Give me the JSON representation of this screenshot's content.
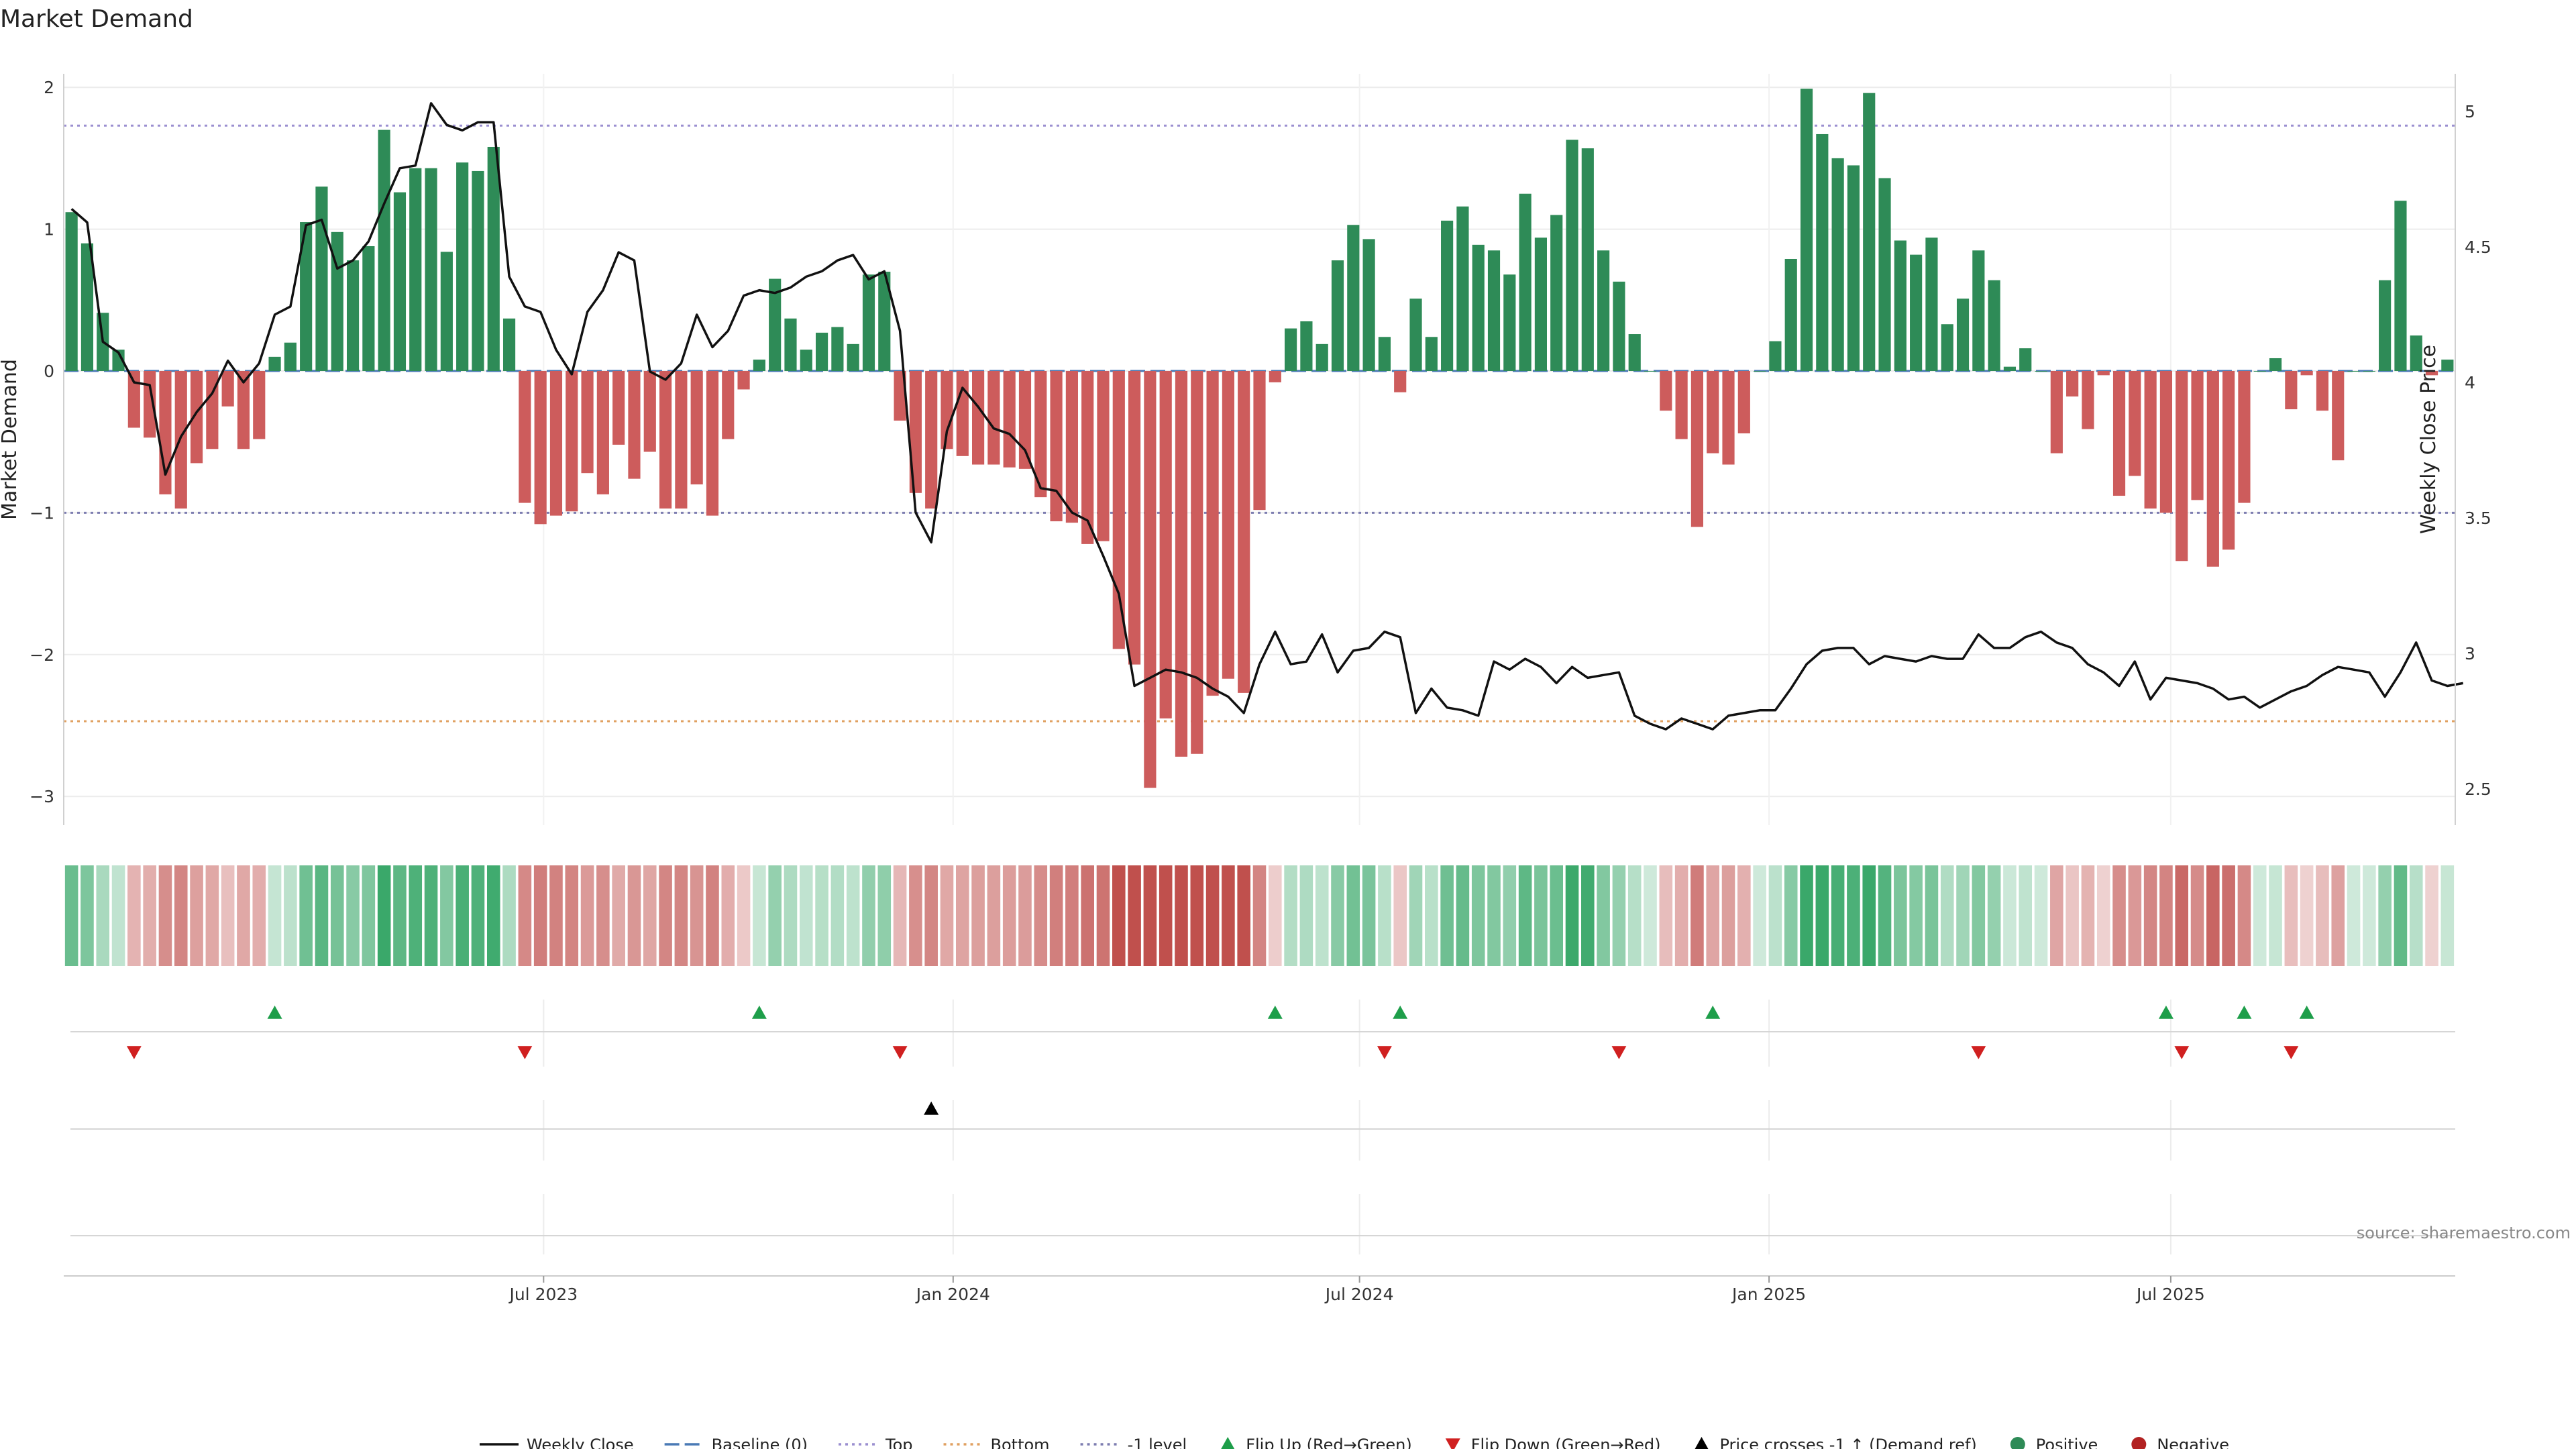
{
  "chart_data": {
    "type": "bar",
    "title": "Market Demand",
    "ylabel": "Market Demand",
    "y2label": "Weekly Close Price",
    "ylim": [
      -3.15,
      2.15
    ],
    "y2lim": [
      2.44,
      5.18
    ],
    "yticks": [
      2,
      1,
      0,
      -1,
      -2,
      -3
    ],
    "y2ticks": [
      5,
      4.5,
      4,
      3.5,
      3,
      2.5
    ],
    "ytick_labels": [
      "2",
      "1",
      "0",
      "−1",
      "−2",
      "−3"
    ],
    "y2tick_labels": [
      "5",
      "4.5",
      "4",
      "3.5",
      "3",
      "2.5"
    ],
    "xtick_labels": [
      "Jul 2023",
      "Jan 2024",
      "Jul 2024",
      "Jan 2025",
      "Jul 2025"
    ],
    "xtick_weeks": [
      30.7,
      56.9,
      82.9,
      109.1,
      134.8
    ],
    "reference_lines": {
      "top": 1.73,
      "bottom": -2.47,
      "minus_one": -1.0,
      "baseline": 0
    },
    "colors": {
      "positive": "#2e8b57",
      "negative": "#cd5c5c",
      "price": "#111111",
      "top": "#9b8fd0",
      "bottom": "#e0a060",
      "minus_one": "#7d7db0",
      "baseline": "#4a7ab5",
      "flip_up": "#1e9e4a",
      "flip_down": "#d02020",
      "cross": "#000000"
    },
    "demand": [
      1.12,
      0.9,
      0.41,
      0.15,
      -0.4,
      -0.47,
      -0.87,
      -0.97,
      -0.65,
      -0.55,
      -0.25,
      -0.55,
      -0.48,
      0.1,
      0.2,
      1.05,
      1.3,
      0.98,
      0.78,
      0.88,
      1.7,
      1.26,
      1.43,
      1.43,
      0.84,
      1.47,
      1.41,
      1.58,
      0.37,
      -0.93,
      -1.08,
      -1.02,
      -0.99,
      -0.72,
      -0.87,
      -0.52,
      -0.76,
      -0.57,
      -0.97,
      -0.97,
      -0.8,
      -1.02,
      -0.48,
      -0.13,
      0.08,
      0.65,
      0.37,
      0.15,
      0.27,
      0.31,
      0.19,
      0.68,
      0.7,
      -0.35,
      -0.86,
      -0.97,
      -0.55,
      -0.6,
      -0.66,
      -0.66,
      -0.68,
      -0.69,
      -0.89,
      -1.06,
      -1.07,
      -1.22,
      -1.2,
      -1.96,
      -2.07,
      -2.94,
      -2.45,
      -2.72,
      -2.7,
      -2.29,
      -2.17,
      -2.27,
      -0.98,
      -0.08,
      0.3,
      0.35,
      0.19,
      0.78,
      1.03,
      0.93,
      0.24,
      -0.15,
      0.51,
      0.24,
      1.06,
      1.16,
      0.89,
      0.85,
      0.68,
      1.25,
      0.94,
      1.1,
      1.63,
      1.57,
      0.85,
      0.63,
      0.26,
      0.0,
      -0.28,
      -0.48,
      -1.1,
      -0.58,
      -0.66,
      -0.44,
      0.0,
      0.21,
      0.79,
      1.99,
      1.67,
      1.5,
      1.45,
      1.96,
      1.36,
      0.92,
      0.82,
      0.94,
      0.33,
      0.51,
      0.85,
      0.64,
      0.03,
      0.16,
      0.0,
      -0.58,
      -0.18,
      -0.41,
      -0.03,
      -0.88,
      -0.74,
      -0.97,
      -1.0,
      -1.34,
      -0.91,
      -1.38,
      -1.26,
      -0.93,
      0.0,
      0.09,
      -0.27,
      -0.03,
      -0.28,
      -0.63,
      0.0,
      0.0,
      0.64,
      1.2,
      0.25,
      -0.03,
      0.08
    ],
    "price": [
      4.64,
      4.59,
      4.15,
      4.11,
      4.0,
      3.99,
      3.66,
      3.8,
      3.89,
      3.96,
      4.08,
      4.0,
      4.07,
      4.25,
      4.28,
      4.58,
      4.6,
      4.42,
      4.45,
      4.52,
      4.66,
      4.79,
      4.8,
      5.03,
      4.95,
      4.93,
      4.96,
      4.96,
      4.39,
      4.28,
      4.26,
      4.12,
      4.03,
      4.26,
      4.34,
      4.48,
      4.45,
      4.04,
      4.01,
      4.07,
      4.25,
      4.13,
      4.19,
      4.32,
      4.34,
      4.33,
      4.35,
      4.39,
      4.41,
      4.45,
      4.47,
      4.38,
      4.41,
      4.19,
      3.52,
      3.41,
      3.82,
      3.98,
      3.91,
      3.83,
      3.81,
      3.75,
      3.61,
      3.6,
      3.52,
      3.49,
      3.36,
      3.22,
      2.88,
      2.91,
      2.94,
      2.93,
      2.91,
      2.87,
      2.84,
      2.78,
      2.96,
      3.08,
      2.96,
      2.97,
      3.07,
      2.93,
      3.01,
      3.02,
      3.08,
      3.06,
      2.78,
      2.87,
      2.8,
      2.79,
      2.77,
      2.97,
      2.94,
      2.98,
      2.95,
      2.89,
      2.95,
      2.91,
      2.92,
      2.93,
      2.77,
      2.74,
      2.72,
      2.76,
      2.74,
      2.72,
      2.77,
      2.78,
      2.79,
      2.79,
      2.87,
      2.96,
      3.01,
      3.02,
      3.02,
      2.96,
      2.99,
      2.98,
      2.97,
      2.99,
      2.98,
      2.98,
      3.07,
      3.02,
      3.02,
      3.06,
      3.08,
      3.04,
      3.02,
      2.96,
      2.93,
      2.88,
      2.97,
      2.83,
      2.91,
      2.9,
      2.89,
      2.87,
      2.83,
      2.84,
      2.8,
      2.83,
      2.86,
      2.88,
      2.92,
      2.95,
      2.94,
      2.93,
      2.84,
      2.93,
      3.04,
      2.9,
      2.88,
      2.89
    ],
    "flip_up_weeks": [
      13,
      44,
      77,
      85,
      105,
      134,
      139,
      143
    ],
    "flip_down_weeks": [
      4,
      29,
      53,
      84,
      99,
      122,
      135,
      142
    ],
    "cross_weeks": [
      55
    ],
    "source": "source: sharemaestro.com",
    "legend": [
      {
        "label": "Weekly Close",
        "kind": "line",
        "color": "#111111",
        "dash": "none"
      },
      {
        "label": "Baseline (0)",
        "kind": "line",
        "color": "#4a7ab5",
        "dash": "22 8"
      },
      {
        "label": "Top",
        "kind": "line",
        "color": "#9b8fd0",
        "dash": "4 6"
      },
      {
        "label": "Bottom",
        "kind": "line",
        "color": "#e0a060",
        "dash": "4 6"
      },
      {
        "label": "-1 level",
        "kind": "line",
        "color": "#7d7db0",
        "dash": "4 6"
      },
      {
        "label": "Flip Up (Red→Green)",
        "kind": "tri-up",
        "color": "#1e9e4a"
      },
      {
        "label": "Flip Down (Green→Red)",
        "kind": "tri-down",
        "color": "#d02020"
      },
      {
        "label": "Price crosses -1 ↑ (Demand ref)",
        "kind": "tri-up",
        "color": "#000000"
      },
      {
        "label": "Positive",
        "kind": "dot",
        "color": "#2e8b57"
      },
      {
        "label": "Negative",
        "kind": "dot",
        "color": "#b22222"
      }
    ]
  }
}
